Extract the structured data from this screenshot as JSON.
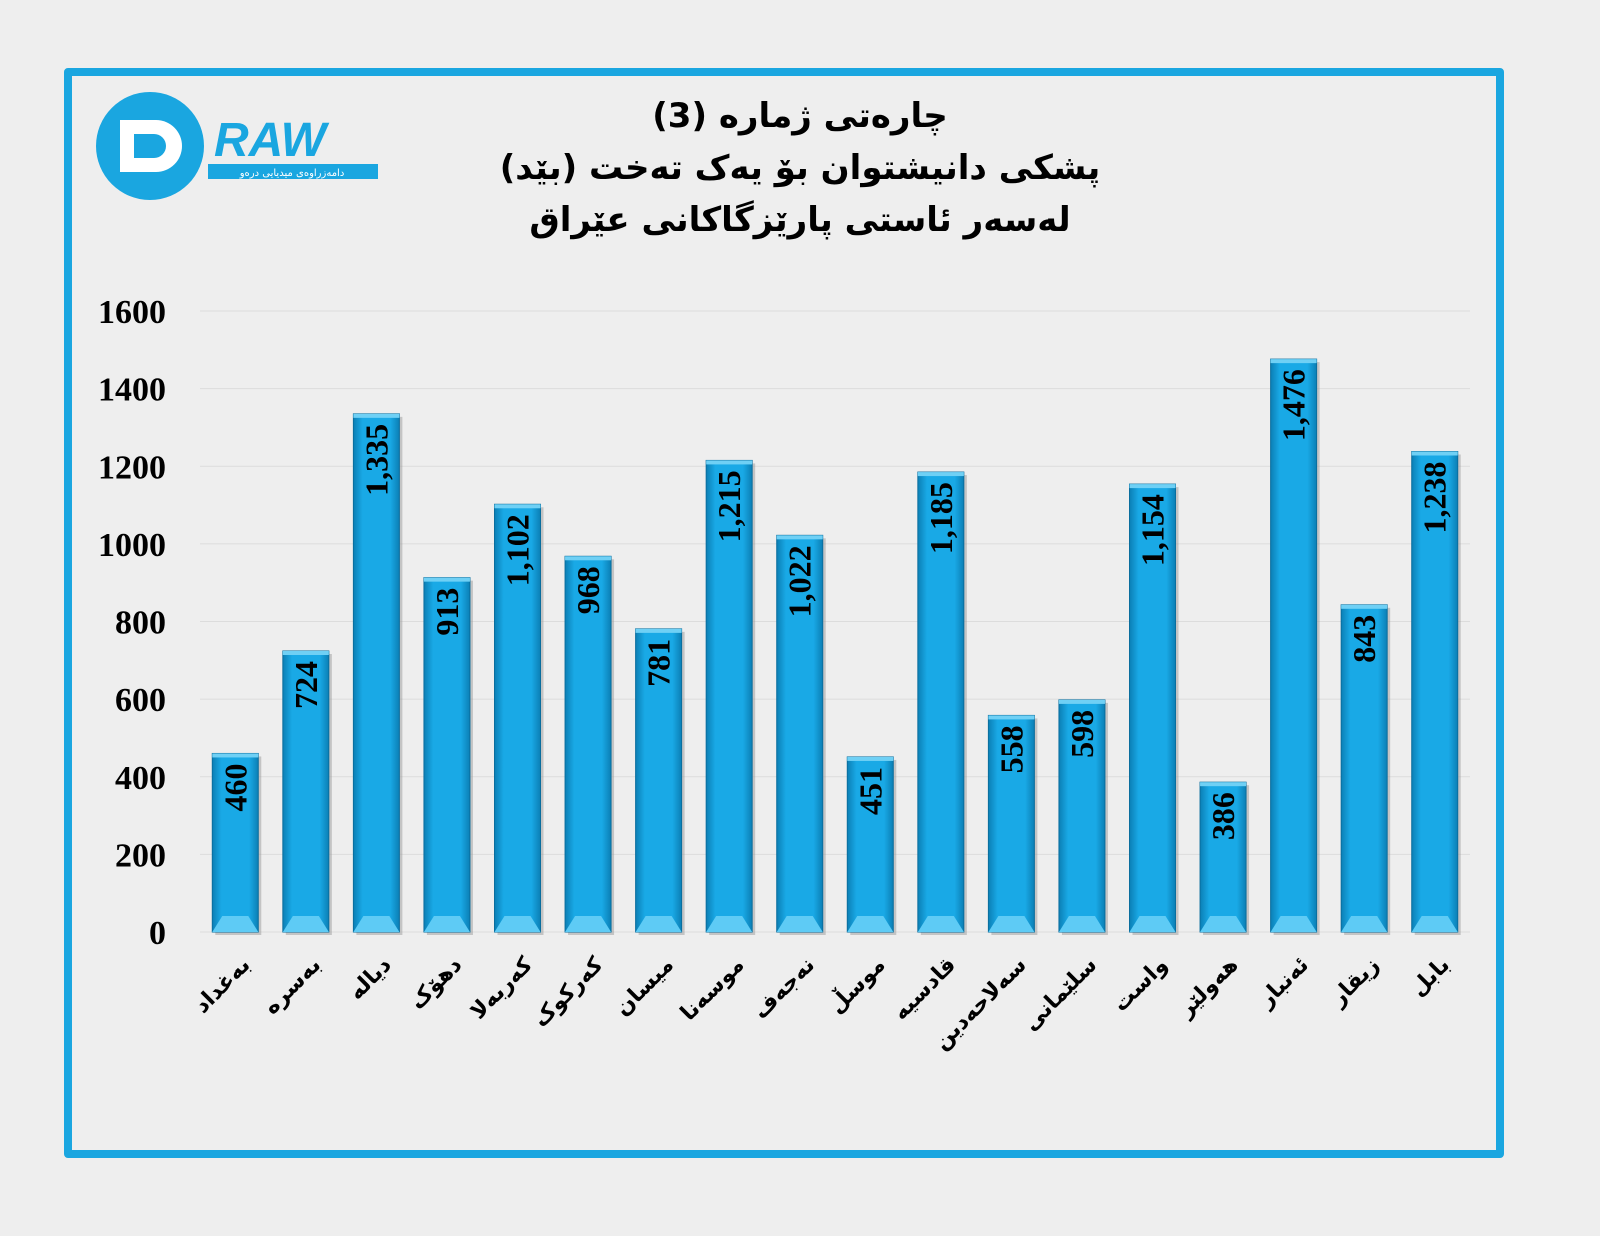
{
  "logo": {
    "text": "DRAW",
    "tagline": "دامەزراوەی میدیایی درەو"
  },
  "colors": {
    "frame": "#1aa6e0",
    "bar": "#19a9e6",
    "bar_dark": "#0b7fb5",
    "background": "#eeeeee"
  },
  "chart_data": {
    "type": "bar",
    "title": [
      "چارەتی ژمارە (3)",
      "پشکی دانیشتوان بۆ یەک تەخت (بێد)",
      "لەسەر ئاستی پارێزگاكانی عێراق"
    ],
    "categories": [
      "بەغداد",
      "بەسرە",
      "دیالە",
      "دهۆک",
      "کەربەلا",
      "کەرکوک",
      "میسان",
      "موسەنا",
      "نەجەف",
      "موسڵ",
      "قادسیە",
      "سەلاحەدین",
      "سلێمانی",
      "واست",
      "هەولێر",
      "ئەنبار",
      "زیقار",
      "بابل"
    ],
    "values": [
      460,
      724,
      1335,
      913,
      1102,
      968,
      781,
      1215,
      1022,
      451,
      1185,
      558,
      598,
      1154,
      386,
      1476,
      843,
      1238
    ],
    "data_labels": [
      "460",
      "724",
      "1,335",
      "913",
      "1,102",
      "968",
      "781",
      "1,215",
      "1,022",
      "451",
      "1,185",
      "558",
      "598",
      "1,154",
      "386",
      "1,476",
      "843",
      "1,238"
    ],
    "ylim": [
      0,
      1600
    ],
    "yticks": [
      "0",
      "200",
      "400",
      "600",
      "800",
      "1000",
      "1200",
      "1400",
      "1600"
    ],
    "grid": true,
    "xlabel": "",
    "ylabel": ""
  }
}
